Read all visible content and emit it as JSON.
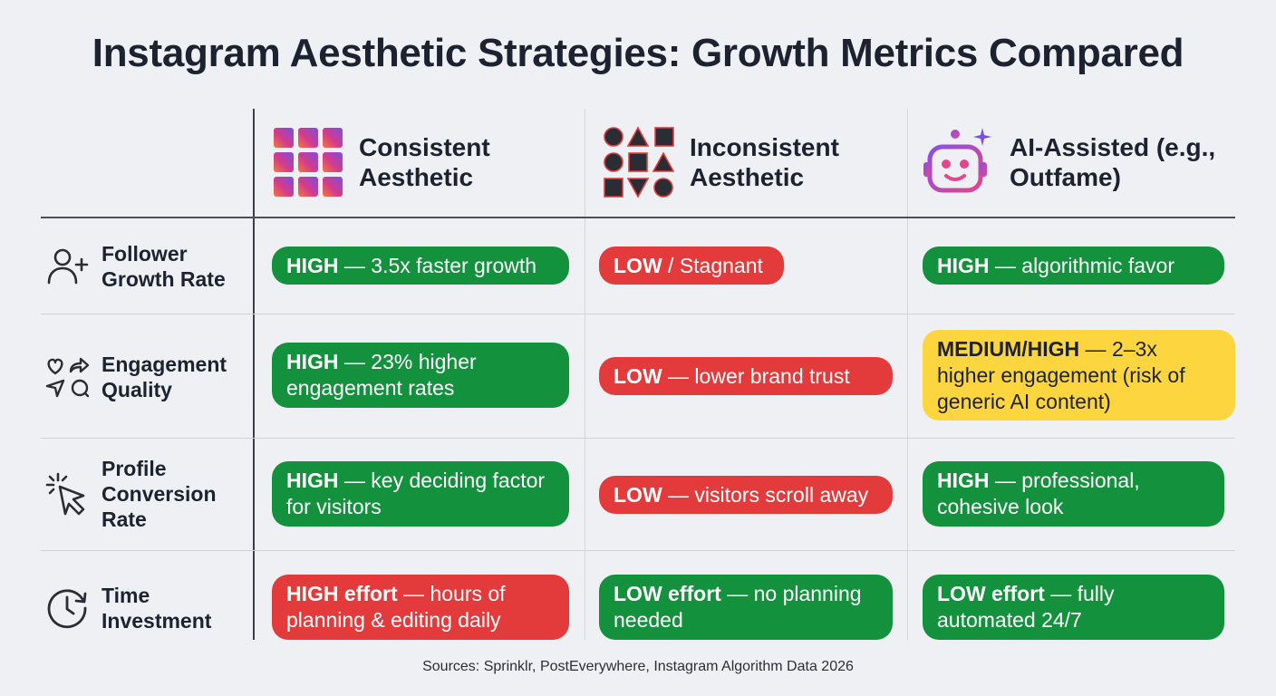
{
  "title": "Instagram Aesthetic Strategies: Growth Metrics Compared",
  "columns": [
    {
      "label": "Consistent Aesthetic",
      "icon": "gradient-grid-icon"
    },
    {
      "label": "Inconsistent Aesthetic",
      "icon": "mixed-shapes-icon"
    },
    {
      "label": "AI-Assisted (e.g., Outfame)",
      "icon": "robot-icon"
    }
  ],
  "rows": [
    {
      "label": "Follower Growth Rate",
      "icon": "add-user-icon",
      "cells": [
        {
          "status": "green",
          "strong": "HIGH",
          "text": " — 3.5x faster growth"
        },
        {
          "status": "red",
          "strong": "LOW",
          "text": " / Stagnant"
        },
        {
          "status": "green",
          "strong": "HIGH",
          "text": " — algorithmic favor"
        }
      ]
    },
    {
      "label": "Engagement Quality",
      "icon": "engagement-icons",
      "cells": [
        {
          "status": "green",
          "strong": "HIGH",
          "text": " — 23% higher engagement rates"
        },
        {
          "status": "red",
          "strong": "LOW",
          "text": " — lower brand trust"
        },
        {
          "status": "yellow",
          "strong": "MEDIUM/HIGH",
          "text": " — 2–3x higher engagement (risk of generic AI content)"
        }
      ]
    },
    {
      "label": "Profile Conversion Rate",
      "icon": "cursor-click-icon",
      "cells": [
        {
          "status": "green",
          "strong": "HIGH",
          "text": " — key deciding factor for visitors"
        },
        {
          "status": "red",
          "strong": "LOW",
          "text": " — visitors scroll away"
        },
        {
          "status": "green",
          "strong": "HIGH",
          "text": " — professional, cohesive look"
        }
      ]
    },
    {
      "label": "Time Investment",
      "icon": "clock-icon",
      "cells": [
        {
          "status": "red",
          "strong": "HIGH effort",
          "text": " — hours of planning & editing daily"
        },
        {
          "status": "green",
          "strong": "LOW effort",
          "text": " — no planning needed"
        },
        {
          "status": "green",
          "strong": "LOW effort",
          "text": " — fully automated 24/7"
        }
      ]
    }
  ],
  "sources": "Sources: Sprinklr, PostEverywhere, Instagram Algorithm Data 2026",
  "colors": {
    "green": "#13913d",
    "red": "#e33a3c",
    "yellow": "#fcd53f",
    "title": "#1d2230"
  }
}
